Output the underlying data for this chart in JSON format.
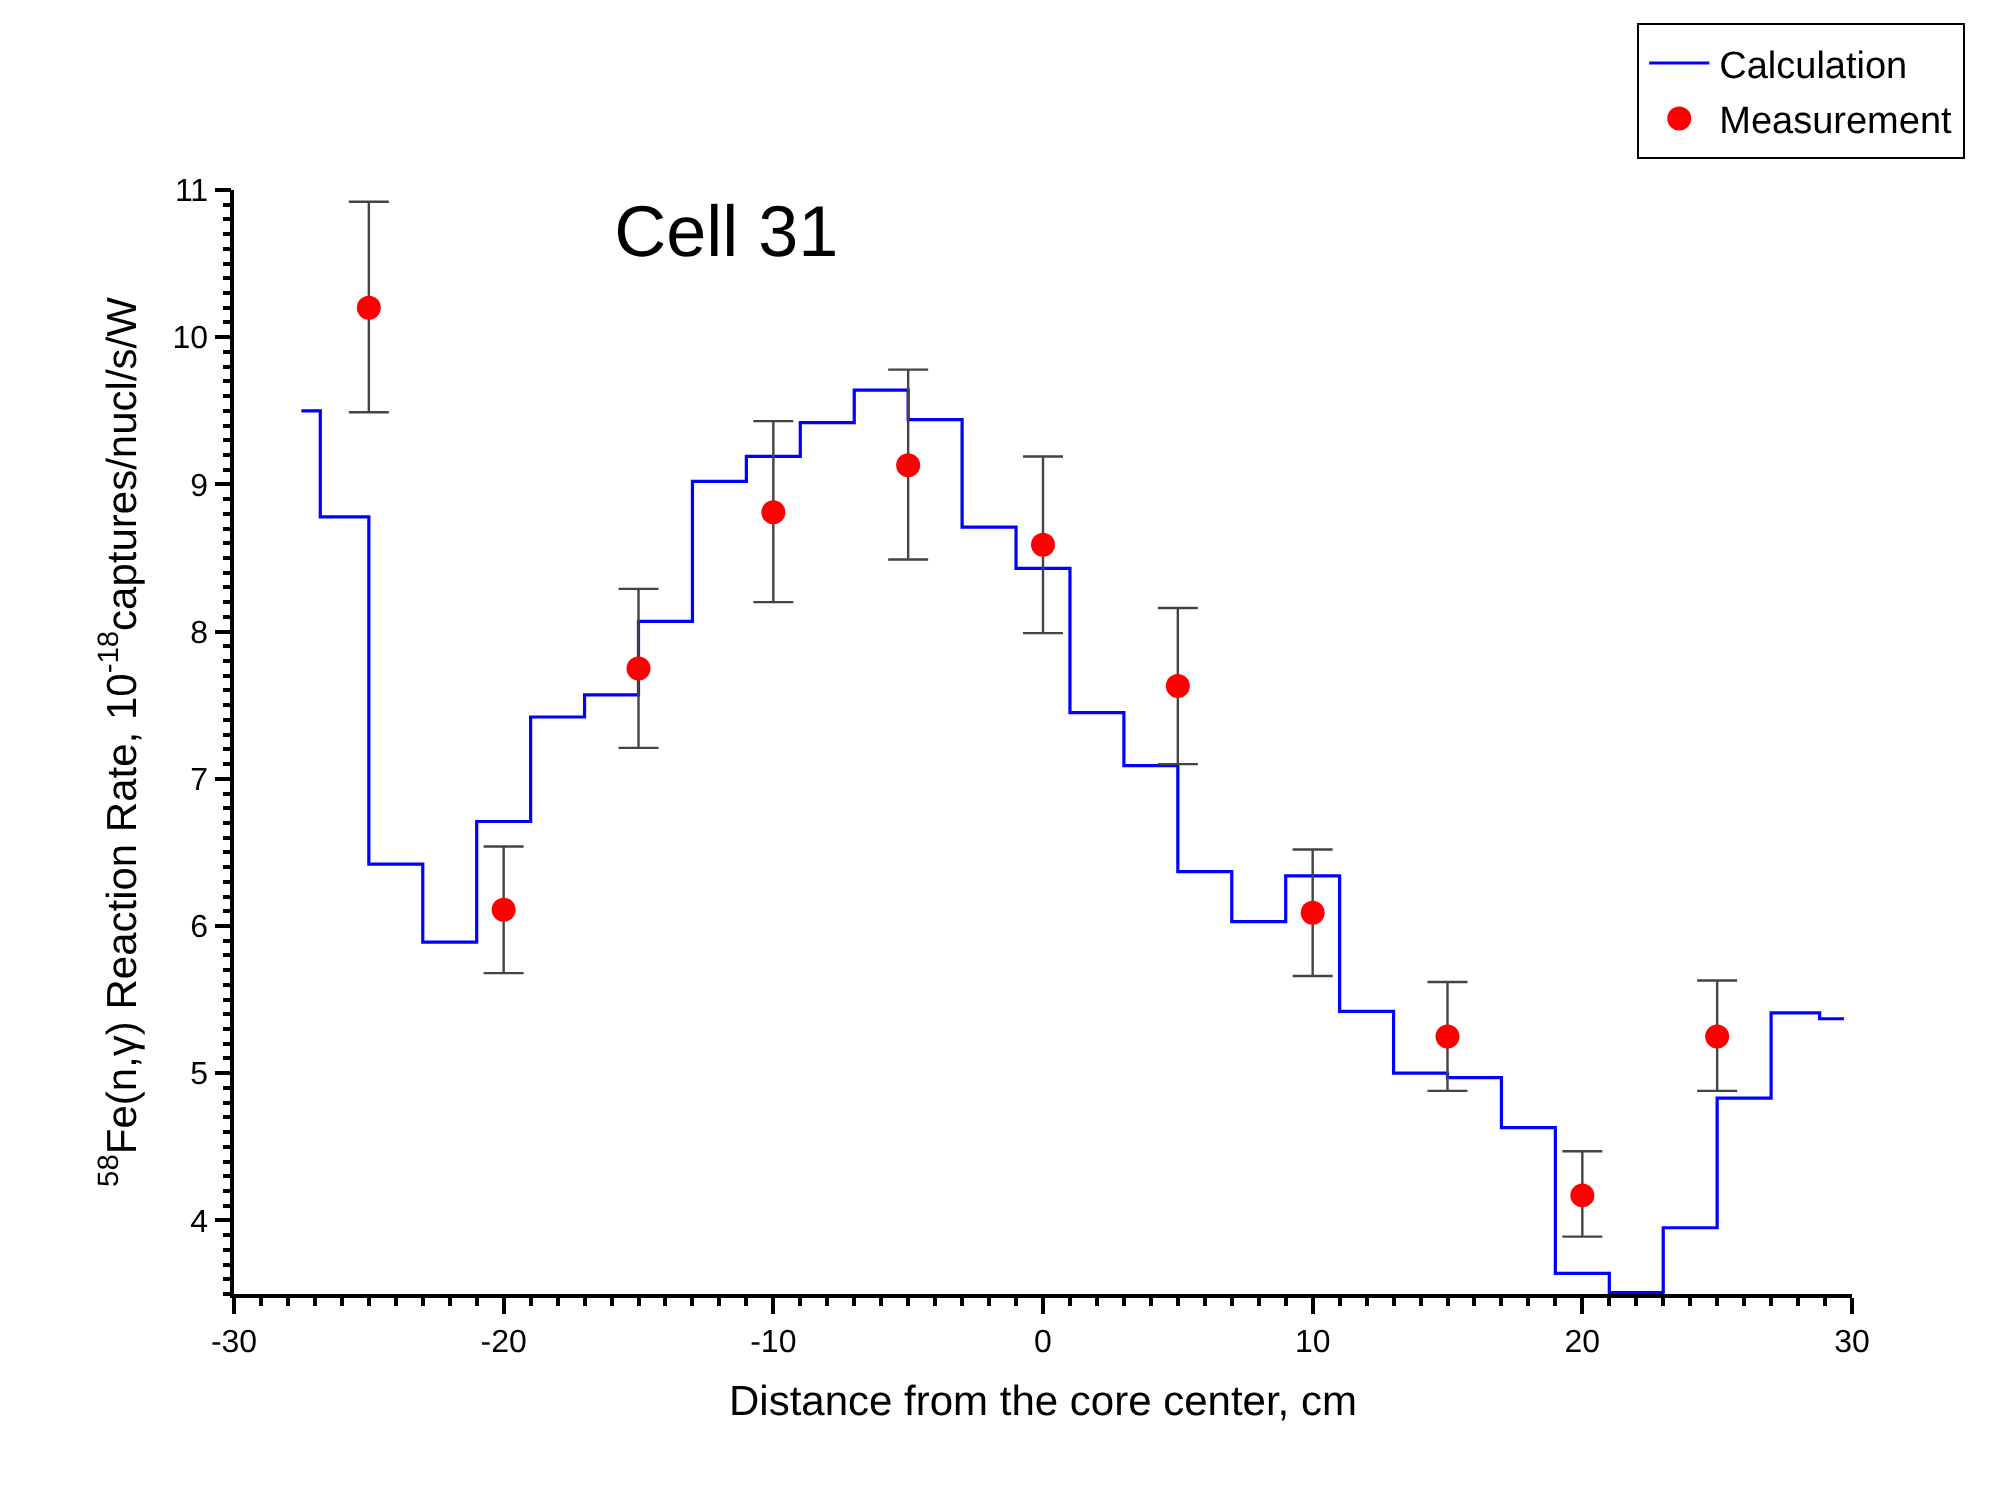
{
  "chart_data": {
    "type": "scatter",
    "title": "Cell 31",
    "xlabel": "Distance from the core center, cm",
    "ylabel": "$^{58}$Fe(n,γ) Reaction Rate, 10$^{-18}$captures/nucl/s/W",
    "xlim": [
      -30,
      30
    ],
    "xticks": [
      -30,
      -20,
      -10,
      0,
      10,
      20,
      30
    ],
    "ylim": [
      3.5,
      11
    ],
    "yticks": [
      4,
      5,
      6,
      7,
      8,
      9,
      10,
      11
    ],
    "legend": "top right",
    "series": [
      {
        "name": "Calculation",
        "type": "step",
        "color": "#0000ff",
        "marker": "none",
        "line_style": "solid",
        "x": [
          -27.5,
          -26.8,
          -25,
          -23,
          -21,
          -19,
          -17,
          -15,
          -13,
          -11,
          -9,
          -7,
          -5,
          -3,
          -1,
          1,
          3,
          5,
          7,
          9,
          11,
          13,
          15,
          17,
          19,
          21,
          23,
          25,
          27,
          28.8,
          29.7
        ],
        "values": [
          9.5,
          8.78,
          6.42,
          5.89,
          6.71,
          7.42,
          7.57,
          8.07,
          9.02,
          9.19,
          9.42,
          9.64,
          9.44,
          8.71,
          8.43,
          7.45,
          7.09,
          6.37,
          6.03,
          6.34,
          5.42,
          5.0,
          4.97,
          4.63,
          3.64,
          3.51,
          3.95,
          4.83,
          5.41,
          5.37,
          5.37
        ]
      },
      {
        "name": "Measurement",
        "color": "#ff0000",
        "marker": "circle",
        "x": [
          -25,
          -20,
          -15,
          -10,
          -5,
          0,
          5,
          10,
          15,
          20,
          25
        ],
        "values": [
          10.2,
          6.11,
          7.75,
          8.81,
          9.13,
          8.59,
          7.63,
          6.09,
          5.25,
          4.17,
          5.25
        ],
        "errors": [
          [
            9.49,
            10.92
          ],
          [
            5.68,
            6.54
          ],
          [
            7.21,
            8.29
          ],
          [
            8.2,
            9.43
          ],
          [
            8.49,
            9.78
          ],
          [
            7.99,
            9.19
          ],
          [
            7.1,
            8.16
          ],
          [
            5.66,
            6.52
          ],
          [
            4.88,
            5.62
          ],
          [
            3.89,
            4.47
          ],
          [
            4.88,
            5.63
          ]
        ]
      }
    ]
  }
}
